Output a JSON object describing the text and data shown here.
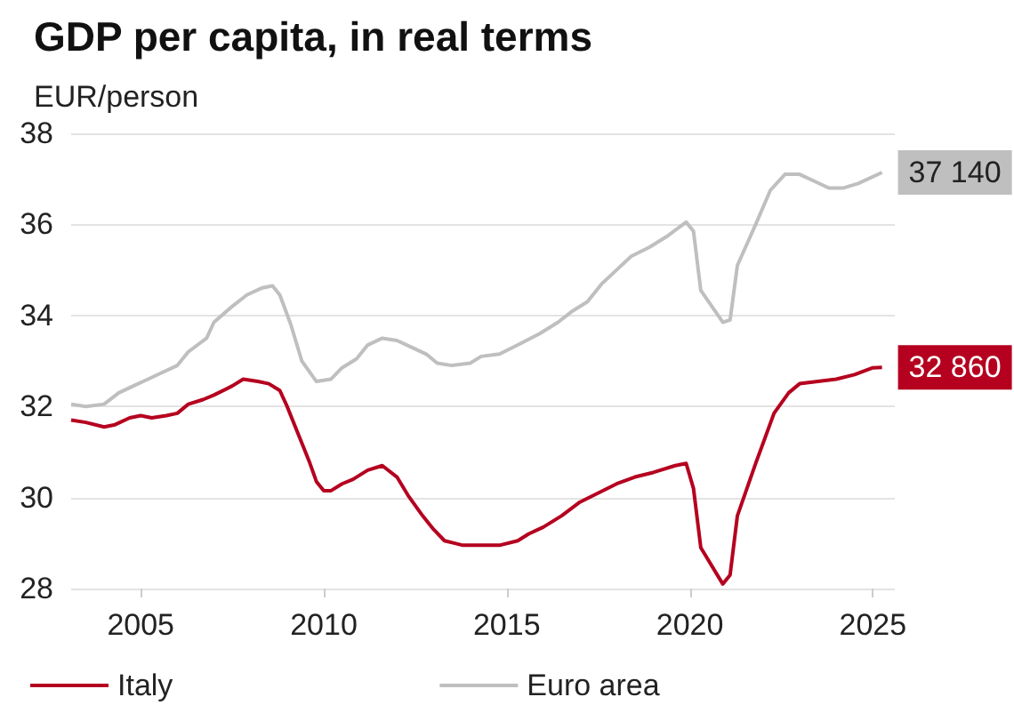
{
  "chart_data": {
    "type": "line",
    "title": "GDP per capita, in real terms",
    "ylabel": "EUR/person",
    "xlim": [
      2003.1,
      2025.6
    ],
    "xticks": [
      2005,
      2010,
      2015,
      2020,
      2025
    ],
    "ylim": [
      28,
      38
    ],
    "yticks": [
      28,
      30,
      32,
      34,
      36,
      38
    ],
    "grid": "y",
    "legend": "bottom",
    "annotations": [
      {
        "text": "37 140",
        "x": 2025.25,
        "y": 37.14
      },
      {
        "text": "32 860",
        "x": 2025.25,
        "y": 32.86
      }
    ],
    "series": [
      {
        "name": "Italy",
        "color": "#b5001f",
        "x": [
          2003.1,
          2003.5,
          2004,
          2004.3,
          2004.7,
          2005,
          2005.3,
          2005.7,
          2006,
          2006.3,
          2006.7,
          2007,
          2007.5,
          2007.8,
          2008.2,
          2008.5,
          2008.8,
          2009,
          2009.3,
          2009.6,
          2009.8,
          2010,
          2010.2,
          2010.5,
          2010.8,
          2011.2,
          2011.6,
          2012,
          2012.3,
          2012.7,
          2013,
          2013.3,
          2013.8,
          2014.3,
          2014.8,
          2015.3,
          2015.6,
          2016,
          2016.5,
          2017,
          2017.5,
          2018,
          2018.5,
          2019,
          2019.6,
          2019.9,
          2020.1,
          2020.3,
          2020.9,
          2021.1,
          2021.3,
          2021.8,
          2022.3,
          2022.7,
          2023,
          2023.5,
          2024,
          2024.5,
          2025,
          2025.25
        ],
        "values": [
          31.7,
          31.65,
          31.55,
          31.6,
          31.75,
          31.8,
          31.75,
          31.8,
          31.85,
          32.05,
          32.15,
          32.25,
          32.45,
          32.6,
          32.55,
          32.5,
          32.35,
          32.0,
          31.4,
          30.8,
          30.35,
          30.15,
          30.15,
          30.3,
          30.4,
          30.6,
          30.7,
          30.45,
          30.05,
          29.6,
          29.3,
          29.05,
          28.95,
          28.95,
          28.95,
          29.05,
          29.2,
          29.35,
          29.6,
          29.9,
          30.1,
          30.3,
          30.45,
          30.55,
          30.7,
          30.75,
          30.2,
          28.9,
          28.1,
          28.3,
          29.6,
          30.75,
          31.85,
          32.3,
          32.5,
          32.55,
          32.6,
          32.7,
          32.85,
          32.86
        ]
      },
      {
        "name": "Euro area",
        "color": "#bfbfbf",
        "x": [
          2003.1,
          2003.5,
          2004,
          2004.4,
          2004.8,
          2005.2,
          2005.6,
          2006,
          2006.3,
          2006.8,
          2007,
          2007.5,
          2007.9,
          2008.3,
          2008.6,
          2008.8,
          2009.1,
          2009.4,
          2009.8,
          2010.2,
          2010.5,
          2010.9,
          2011.2,
          2011.6,
          2012,
          2012.4,
          2012.8,
          2013.1,
          2013.5,
          2014,
          2014.3,
          2014.8,
          2015.3,
          2015.9,
          2016.4,
          2016.8,
          2017.2,
          2017.6,
          2018,
          2018.4,
          2018.9,
          2019.4,
          2019.9,
          2020.1,
          2020.3,
          2020.9,
          2021.1,
          2021.3,
          2021.8,
          2022.2,
          2022.6,
          2023,
          2023.4,
          2023.8,
          2024.2,
          2024.6,
          2025.25
        ],
        "values": [
          32.05,
          32.0,
          32.05,
          32.3,
          32.45,
          32.6,
          32.75,
          32.9,
          33.2,
          33.5,
          33.85,
          34.2,
          34.45,
          34.6,
          34.65,
          34.45,
          33.8,
          33.0,
          32.55,
          32.6,
          32.85,
          33.05,
          33.35,
          33.5,
          33.45,
          33.3,
          33.15,
          32.95,
          32.9,
          32.95,
          33.1,
          33.15,
          33.35,
          33.6,
          33.85,
          34.1,
          34.3,
          34.7,
          35.0,
          35.3,
          35.5,
          35.75,
          36.05,
          35.85,
          34.55,
          33.85,
          33.9,
          35.1,
          36.0,
          36.75,
          37.1,
          37.1,
          36.95,
          36.8,
          36.8,
          36.9,
          37.14
        ]
      }
    ]
  }
}
